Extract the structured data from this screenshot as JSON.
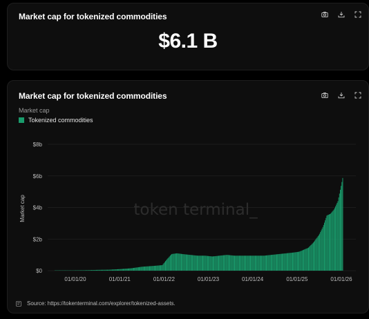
{
  "kpi": {
    "title": "Market cap for tokenized commodities",
    "value": "$6.1 B"
  },
  "chart": {
    "title": "Market cap for tokenized commodities",
    "subtitle": "Market cap",
    "legend_label": "Tokenized commodities",
    "watermark": "token terminal_",
    "source": "Source: https://tokenterminal.com/explorer/tokenized-assets.",
    "color": "#1a9c6c"
  },
  "toolbar_icons": [
    "camera-icon",
    "download-icon",
    "expand-icon"
  ],
  "chart_data": {
    "type": "bar",
    "title": "Market cap for tokenized commodities",
    "ylabel": "Market cap",
    "xlabel": "",
    "ylim": [
      0,
      8
    ],
    "y_unit": "billions USD",
    "yticks": [
      0,
      2,
      4,
      6,
      8
    ],
    "ytick_labels": [
      "$0",
      "$2b",
      "$4b",
      "$6b",
      "$8b"
    ],
    "xticks": [
      "2020-01-01",
      "2021-01-01",
      "2022-01-01",
      "2023-01-01",
      "2024-01-01",
      "2025-01-01",
      "2026-01-01"
    ],
    "xtick_labels": [
      "01/01/20",
      "01/01/21",
      "01/01/22",
      "01/01/23",
      "01/01/24",
      "01/01/25",
      "01/01/26"
    ],
    "grid": true,
    "legend": "top-left",
    "series": [
      {
        "name": "Tokenized commodities",
        "color": "#1a9c6c",
        "points": [
          [
            "2019-07-15",
            0.0
          ],
          [
            "2019-10-01",
            0.01
          ],
          [
            "2020-01-01",
            0.02
          ],
          [
            "2020-04-01",
            0.03
          ],
          [
            "2020-07-01",
            0.05
          ],
          [
            "2020-10-01",
            0.06
          ],
          [
            "2021-01-01",
            0.1
          ],
          [
            "2021-04-01",
            0.15
          ],
          [
            "2021-07-01",
            0.25
          ],
          [
            "2021-10-01",
            0.3
          ],
          [
            "2021-12-15",
            0.35
          ],
          [
            "2022-01-15",
            0.65
          ],
          [
            "2022-03-01",
            1.05
          ],
          [
            "2022-04-15",
            1.1
          ],
          [
            "2022-06-01",
            1.05
          ],
          [
            "2022-08-01",
            1.0
          ],
          [
            "2022-10-01",
            0.95
          ],
          [
            "2022-12-01",
            0.95
          ],
          [
            "2023-02-01",
            0.9
          ],
          [
            "2023-04-01",
            0.95
          ],
          [
            "2023-06-01",
            1.0
          ],
          [
            "2023-08-01",
            0.95
          ],
          [
            "2023-10-01",
            0.95
          ],
          [
            "2023-12-01",
            0.95
          ],
          [
            "2024-02-01",
            0.95
          ],
          [
            "2024-04-01",
            0.95
          ],
          [
            "2024-06-01",
            1.0
          ],
          [
            "2024-08-01",
            1.05
          ],
          [
            "2024-10-01",
            1.1
          ],
          [
            "2024-12-01",
            1.15
          ],
          [
            "2025-01-15",
            1.2
          ],
          [
            "2025-02-15",
            1.3
          ],
          [
            "2025-04-01",
            1.45
          ],
          [
            "2025-05-15",
            1.8
          ],
          [
            "2025-07-01",
            2.3
          ],
          [
            "2025-08-01",
            2.8
          ],
          [
            "2025-09-01",
            3.5
          ],
          [
            "2025-10-01",
            3.6
          ],
          [
            "2025-11-01",
            3.9
          ],
          [
            "2025-12-01",
            4.4
          ],
          [
            "2025-12-20",
            5.1
          ],
          [
            "2026-01-05",
            5.7
          ],
          [
            "2026-01-15",
            6.1
          ]
        ]
      }
    ]
  }
}
